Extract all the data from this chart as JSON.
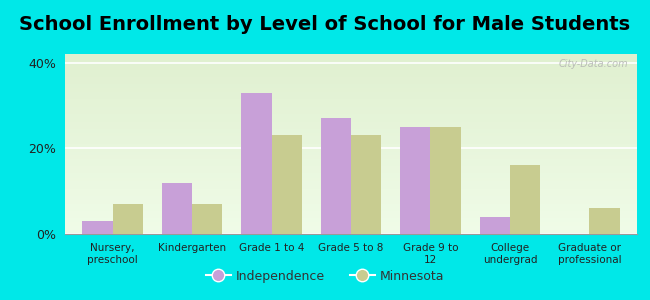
{
  "title": "School Enrollment by Level of School for Male Students",
  "categories": [
    "Nursery,\npreschool",
    "Kindergarten",
    "Grade 1 to 4",
    "Grade 5 to 8",
    "Grade 9 to\n12",
    "College\nundergrad",
    "Graduate or\nprofessional"
  ],
  "independence": [
    3.0,
    12.0,
    33.0,
    27.0,
    25.0,
    4.0,
    0.0
  ],
  "minnesota": [
    7.0,
    7.0,
    23.0,
    23.0,
    25.0,
    16.0,
    6.0
  ],
  "independence_color": "#c8a0d8",
  "minnesota_color": "#c8cc90",
  "background_color": "#00e8e8",
  "plot_bg_colors": [
    "#e0f0d0",
    "#f0fce8"
  ],
  "ylim": [
    0,
    42
  ],
  "yticks": [
    0,
    20,
    40
  ],
  "ytick_labels": [
    "0%",
    "20%",
    "40%"
  ],
  "legend_labels": [
    "Independence",
    "Minnesota"
  ],
  "title_fontsize": 14,
  "watermark": "City-Data.com"
}
